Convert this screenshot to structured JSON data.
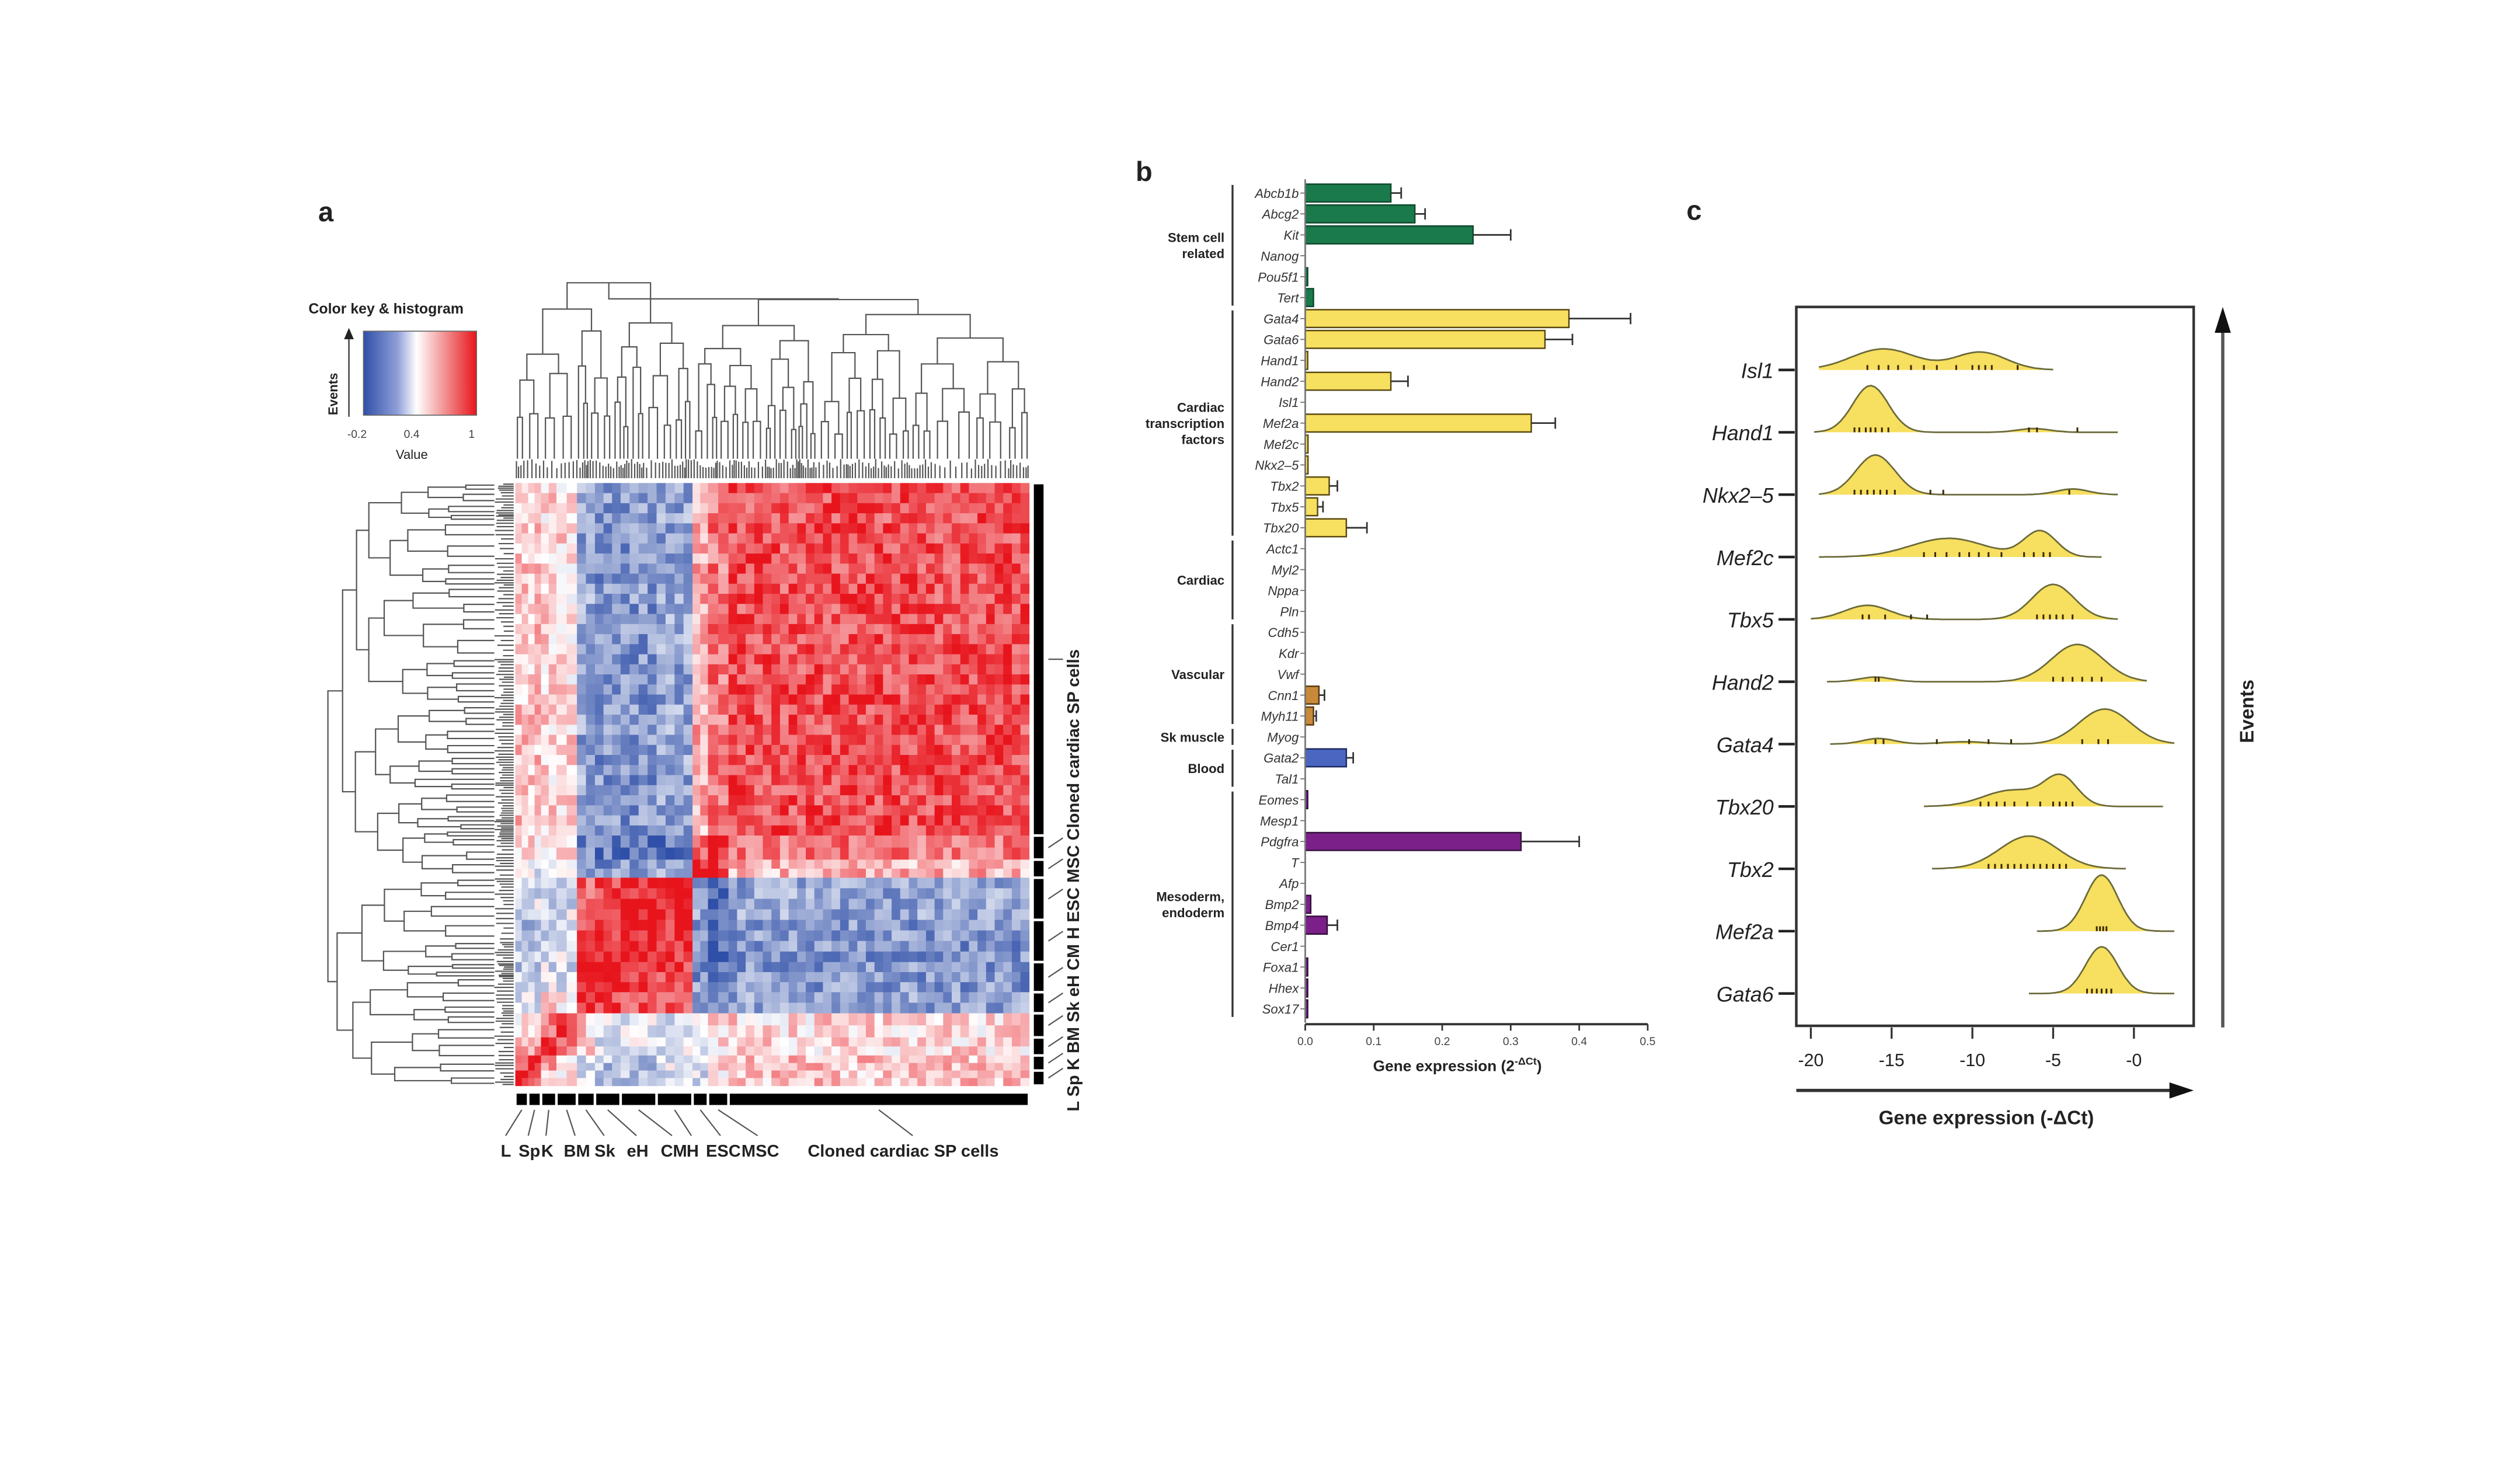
{
  "figure": {
    "panels": [
      "a",
      "b",
      "c"
    ]
  },
  "chart_data": [
    {
      "panel": "a",
      "type": "heatmap",
      "title": "",
      "color_key": {
        "title": "Color key & histogram",
        "xlabel": "Value",
        "ylabel": "Events",
        "ticks": [
          "-0.2",
          "0.4",
          "1"
        ],
        "range": [
          -0.2,
          1
        ],
        "colors": {
          "low": "#2f4fa8",
          "mid": "#ffffff",
          "high": "#e8141c"
        }
      },
      "column_labels": [
        "L",
        "Sp",
        "K",
        "BM",
        "Sk",
        "eH",
        "CM",
        "H",
        "ESC",
        "MSC",
        "Cloned cardiac SP cells"
      ],
      "row_labels": [
        "Cloned cardiac SP cells",
        "MSC",
        "ESC",
        "H",
        "CM",
        "eH",
        "Sk",
        "BM",
        "K",
        "Sp",
        "L"
      ],
      "groups_order_bottom_to_top": [
        "L",
        "Sp",
        "K",
        "BM",
        "Sk",
        "eH",
        "CM",
        "H",
        "ESC",
        "MSC",
        "Cloned cardiac SP cells"
      ],
      "group_fractions": [
        0.025,
        0.025,
        0.03,
        0.04,
        0.035,
        0.05,
        0.07,
        0.07,
        0.03,
        0.04,
        0.585
      ],
      "block_correlation": [
        [
          1.0,
          0.9,
          0.6,
          0.5,
          0.3,
          0.2,
          0.2,
          0.3,
          0.3,
          0.5,
          0.55
        ],
        [
          0.9,
          1.0,
          0.7,
          0.5,
          0.3,
          0.2,
          0.2,
          0.3,
          0.3,
          0.5,
          0.55
        ],
        [
          0.6,
          0.7,
          1.0,
          0.8,
          0.5,
          0.3,
          0.3,
          0.3,
          0.4,
          0.5,
          0.5
        ],
        [
          0.5,
          0.5,
          0.8,
          1.0,
          0.5,
          0.3,
          0.3,
          0.3,
          0.4,
          0.5,
          0.5
        ],
        [
          0.3,
          0.3,
          0.5,
          0.5,
          1.0,
          0.9,
          0.85,
          0.8,
          0.1,
          0.0,
          0.1
        ],
        [
          0.2,
          0.2,
          0.3,
          0.3,
          0.9,
          1.0,
          0.95,
          0.9,
          0.05,
          -0.05,
          0.05
        ],
        [
          0.2,
          0.2,
          0.3,
          0.3,
          0.85,
          0.95,
          1.0,
          0.95,
          0.05,
          -0.1,
          0.05
        ],
        [
          0.3,
          0.3,
          0.3,
          0.3,
          0.8,
          0.9,
          0.95,
          1.0,
          0.1,
          -0.05,
          0.1
        ],
        [
          0.3,
          0.3,
          0.4,
          0.4,
          0.1,
          0.05,
          0.05,
          0.1,
          1.0,
          0.85,
          0.6
        ],
        [
          0.5,
          0.5,
          0.5,
          0.5,
          0.0,
          -0.05,
          -0.1,
          -0.05,
          0.85,
          1.0,
          0.75
        ],
        [
          0.55,
          0.55,
          0.5,
          0.5,
          0.1,
          0.05,
          0.05,
          0.1,
          0.6,
          0.75,
          0.85
        ]
      ]
    },
    {
      "panel": "b",
      "type": "bar",
      "orientation": "horizontal",
      "xlabel": "Gene expression (2",
      "xlabel_sup": "-ΔCt",
      "xlabel_close": ")",
      "xlim": [
        0,
        0.5
      ],
      "xticks": [
        "0.0",
        "0.1",
        "0.2",
        "0.3",
        "0.4",
        "0.5"
      ],
      "groups": [
        {
          "label": [
            "Stem cell",
            "related"
          ],
          "color": "#1a7a4c",
          "genes": [
            {
              "name": "Abcb1b",
              "value": 0.125,
              "err": 0.015
            },
            {
              "name": "Abcg2",
              "value": 0.16,
              "err": 0.015
            },
            {
              "name": "Kit",
              "value": 0.245,
              "err": 0.055
            },
            {
              "name": "Nanog",
              "value": 0.0,
              "err": 0
            },
            {
              "name": "Pou5f1",
              "value": 0.003,
              "err": 0
            },
            {
              "name": "Tert",
              "value": 0.012,
              "err": 0
            }
          ]
        },
        {
          "label": [
            "Cardiac",
            "transcription",
            "factors"
          ],
          "color": "#f7df5f",
          "genes": [
            {
              "name": "Gata4",
              "value": 0.385,
              "err": 0.09
            },
            {
              "name": "Gata6",
              "value": 0.35,
              "err": 0.04
            },
            {
              "name": "Hand1",
              "value": 0.003,
              "err": 0
            },
            {
              "name": "Hand2",
              "value": 0.125,
              "err": 0.025
            },
            {
              "name": "Isl1",
              "value": 0.0,
              "err": 0
            },
            {
              "name": "Mef2a",
              "value": 0.33,
              "err": 0.035
            },
            {
              "name": "Mef2c",
              "value": 0.004,
              "err": 0
            },
            {
              "name": "Nkx2–5",
              "value": 0.004,
              "err": 0
            },
            {
              "name": "Tbx2",
              "value": 0.035,
              "err": 0.012
            },
            {
              "name": "Tbx5",
              "value": 0.018,
              "err": 0.008
            },
            {
              "name": "Tbx20",
              "value": 0.06,
              "err": 0.03
            }
          ]
        },
        {
          "label": [
            "Cardiac"
          ],
          "color": "#f7df5f",
          "genes": [
            {
              "name": "Actc1",
              "value": 0.0,
              "err": 0
            },
            {
              "name": "Myl2",
              "value": 0.0,
              "err": 0
            },
            {
              "name": "Nppa",
              "value": 0.0,
              "err": 0
            },
            {
              "name": "Pln",
              "value": 0.0,
              "err": 0
            }
          ]
        },
        {
          "label": [
            "Vascular"
          ],
          "color": "#c88a3a",
          "genes": [
            {
              "name": "Cdh5",
              "value": 0.0,
              "err": 0
            },
            {
              "name": "Kdr",
              "value": 0.0,
              "err": 0
            },
            {
              "name": "Vwf",
              "value": 0.0,
              "err": 0
            },
            {
              "name": "Cnn1",
              "value": 0.02,
              "err": 0.008
            },
            {
              "name": "Myh11",
              "value": 0.012,
              "err": 0.004
            }
          ]
        },
        {
          "label": [
            "Sk muscle"
          ],
          "color": "#4a66c0",
          "genes": [
            {
              "name": "Myog",
              "value": 0.0,
              "err": 0
            }
          ]
        },
        {
          "label": [
            "Blood"
          ],
          "color": "#4a66c0",
          "genes": [
            {
              "name": "Gata2",
              "value": 0.06,
              "err": 0.01
            },
            {
              "name": "Tal1",
              "value": 0.0,
              "err": 0
            }
          ]
        },
        {
          "label": [
            "Mesoderm,",
            "endoderm"
          ],
          "color": "#7a2088",
          "genes": [
            {
              "name": "Eomes",
              "value": 0.002,
              "err": 0
            },
            {
              "name": "Mesp1",
              "value": 0.0,
              "err": 0
            },
            {
              "name": "Pdgfra",
              "value": 0.315,
              "err": 0.085
            },
            {
              "name": "T",
              "value": 0.0,
              "err": 0
            },
            {
              "name": "Afp",
              "value": 0.0,
              "err": 0
            },
            {
              "name": "Bmp2",
              "value": 0.008,
              "err": 0
            },
            {
              "name": "Bmp4",
              "value": 0.032,
              "err": 0.015
            },
            {
              "name": "Cer1",
              "value": 0.0,
              "err": 0
            },
            {
              "name": "Foxa1",
              "value": 0.002,
              "err": 0
            },
            {
              "name": "Hhex",
              "value": 0.002,
              "err": 0
            },
            {
              "name": "Sox17",
              "value": 0.002,
              "err": 0
            }
          ]
        }
      ]
    },
    {
      "panel": "c",
      "type": "area",
      "subtype": "ridgeline-density",
      "xlabel": "Gene expression (-ΔCt)",
      "ylabel": "Events",
      "xlim": [
        -21,
        -2
      ],
      "xticks": [
        -20,
        -15,
        -10,
        -5,
        0
      ],
      "xtick_labels": [
        "-20",
        "-15",
        "-10",
        "-5",
        "-0"
      ],
      "fill_color": "#f7df5f",
      "series": [
        {
          "name": "Isl1",
          "range": [
            -19.5,
            -5.0
          ],
          "peaks": [
            {
              "mu": -15.5,
              "sd": 2.0,
              "h": 0.45
            },
            {
              "mu": -9.5,
              "sd": 1.6,
              "h": 0.38
            }
          ],
          "rug": [
            -16.5,
            -15.8,
            -15.2,
            -14.6,
            -13.8,
            -13,
            -12.2,
            -11,
            -10,
            -9.6,
            -9.2,
            -8.8,
            -7.2
          ]
        },
        {
          "name": "Hand1",
          "range": [
            -19.8,
            -1.0
          ],
          "peaks": [
            {
              "mu": -16.3,
              "sd": 1.1,
              "h": 1.0
            },
            {
              "mu": -6.2,
              "sd": 1.0,
              "h": 0.08
            }
          ],
          "rug": [
            -17.3,
            -17,
            -16.6,
            -16.3,
            -16,
            -15.6,
            -15.2,
            -6.5,
            -6,
            -3.5
          ]
        },
        {
          "name": "Nkx2-5",
          "range": [
            -19.5,
            -1.0
          ],
          "peaks": [
            {
              "mu": -16.0,
              "sd": 1.2,
              "h": 0.85
            },
            {
              "mu": -3.8,
              "sd": 1.0,
              "h": 0.12
            }
          ],
          "rug": [
            -17.3,
            -16.9,
            -16.5,
            -16.1,
            -15.7,
            -15.3,
            -14.8,
            -12.6,
            -11.8,
            -4
          ]
        },
        {
          "name": "Mef2c",
          "range": [
            -19.5,
            -2.0
          ],
          "peaks": [
            {
              "mu": -11.5,
              "sd": 2.3,
              "h": 0.4
            },
            {
              "mu": -5.8,
              "sd": 1.0,
              "h": 0.55
            }
          ],
          "rug": [
            -13,
            -12.3,
            -11.6,
            -10.8,
            -10.2,
            -9.6,
            -9,
            -8.2,
            -6.8,
            -6.2,
            -5.6,
            -5.2
          ]
        },
        {
          "name": "Tbx5",
          "range": [
            -20.0,
            -1.0
          ],
          "peaks": [
            {
              "mu": -16.5,
              "sd": 1.4,
              "h": 0.3
            },
            {
              "mu": -5.0,
              "sd": 1.3,
              "h": 0.75
            }
          ],
          "rug": [
            -16.8,
            -16.4,
            -15.4,
            -13.8,
            -12.8,
            -6,
            -5.6,
            -5.2,
            -4.8,
            -4.4,
            -3.8
          ]
        },
        {
          "name": "Hand2",
          "range": [
            -19.0,
            0.8
          ],
          "peaks": [
            {
              "mu": -16.0,
              "sd": 1.0,
              "h": 0.1
            },
            {
              "mu": -3.5,
              "sd": 1.6,
              "h": 0.8
            }
          ],
          "rug": [
            -16,
            -15.8,
            -5,
            -4.4,
            -3.8,
            -3.2,
            -2.6,
            -2
          ]
        },
        {
          "name": "Gata4",
          "range": [
            -18.8,
            2.5
          ],
          "peaks": [
            {
              "mu": -15.8,
              "sd": 1.0,
              "h": 0.12
            },
            {
              "mu": -10.5,
              "sd": 1.4,
              "h": 0.05
            },
            {
              "mu": -1.8,
              "sd": 1.6,
              "h": 0.75
            }
          ],
          "rug": [
            -16,
            -15.5,
            -12.2,
            -10.2,
            -9,
            -7.6,
            -3.2,
            -2.2,
            -1.6
          ]
        },
        {
          "name": "Tbx20",
          "range": [
            -13.0,
            1.8
          ],
          "peaks": [
            {
              "mu": -7.5,
              "sd": 1.8,
              "h": 0.35
            },
            {
              "mu": -4.5,
              "sd": 1.0,
              "h": 0.6
            }
          ],
          "rug": [
            -9.5,
            -9,
            -8.5,
            -8,
            -7.4,
            -6.6,
            -5.8,
            -5,
            -4.6,
            -4.2,
            -3.8
          ]
        },
        {
          "name": "Tbx2",
          "range": [
            -12.5,
            -0.5
          ],
          "peaks": [
            {
              "mu": -6.5,
              "sd": 1.8,
              "h": 0.7
            }
          ],
          "rug": [
            -9,
            -8.6,
            -8.2,
            -7.8,
            -7.4,
            -7,
            -6.6,
            -6.2,
            -5.8,
            -5.4,
            -5,
            -4.6,
            -4.2
          ]
        },
        {
          "name": "Mef2a",
          "range": [
            -6.0,
            2.5
          ],
          "peaks": [
            {
              "mu": -2.0,
              "sd": 1.0,
              "h": 1.2
            }
          ],
          "rug": [
            -2.3,
            -2.1,
            -1.9,
            -1.7
          ]
        },
        {
          "name": "Gata6",
          "range": [
            -6.5,
            2.5
          ],
          "peaks": [
            {
              "mu": -2.0,
              "sd": 1.0,
              "h": 1.0
            }
          ],
          "rug": [
            -2.9,
            -2.6,
            -2.3,
            -2,
            -1.7,
            -1.4
          ]
        }
      ]
    }
  ]
}
